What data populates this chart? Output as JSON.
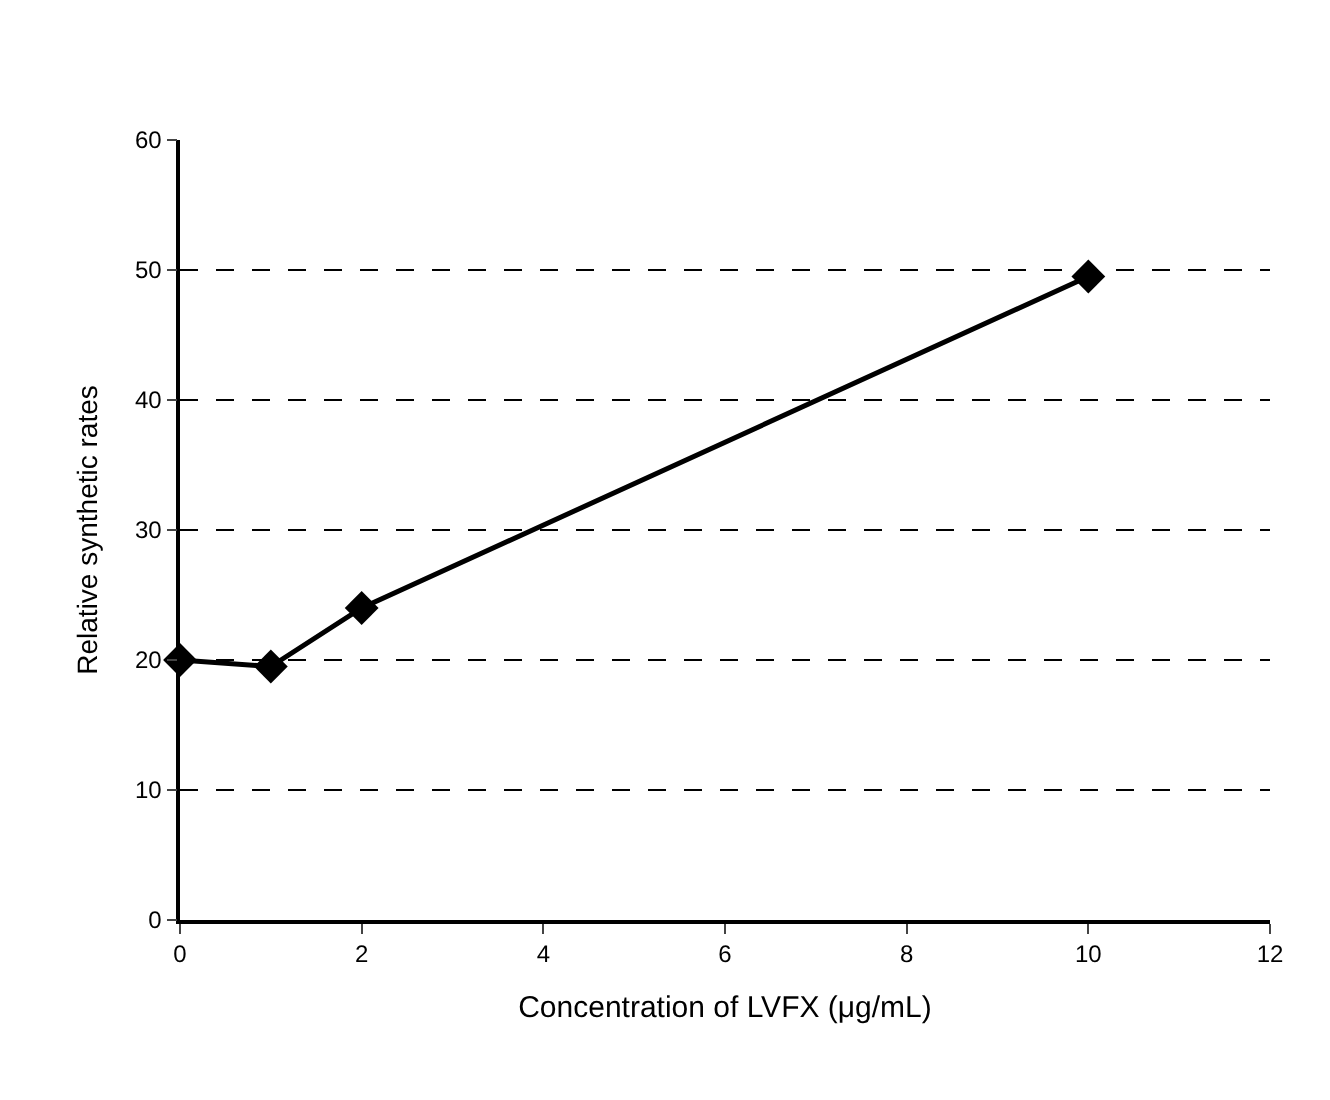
{
  "chart_data": {
    "type": "line",
    "xlabel": "Concentration of LVFX (μg/mL)",
    "ylabel": "Relative synthetic rates",
    "x": [
      0,
      1,
      2,
      10
    ],
    "series": [
      {
        "color": "#000000",
        "values": [
          20,
          19.5,
          24,
          49.5
        ]
      }
    ],
    "xlim": [
      0,
      12
    ],
    "xticks": [
      0,
      2,
      4,
      6,
      8,
      10,
      12
    ],
    "ylim": [
      0,
      60
    ],
    "yticks": [
      0,
      10,
      20,
      30,
      40,
      50,
      60
    ],
    "grid": "y",
    "legend": false,
    "marker": "diamond",
    "line_style": "solid"
  }
}
